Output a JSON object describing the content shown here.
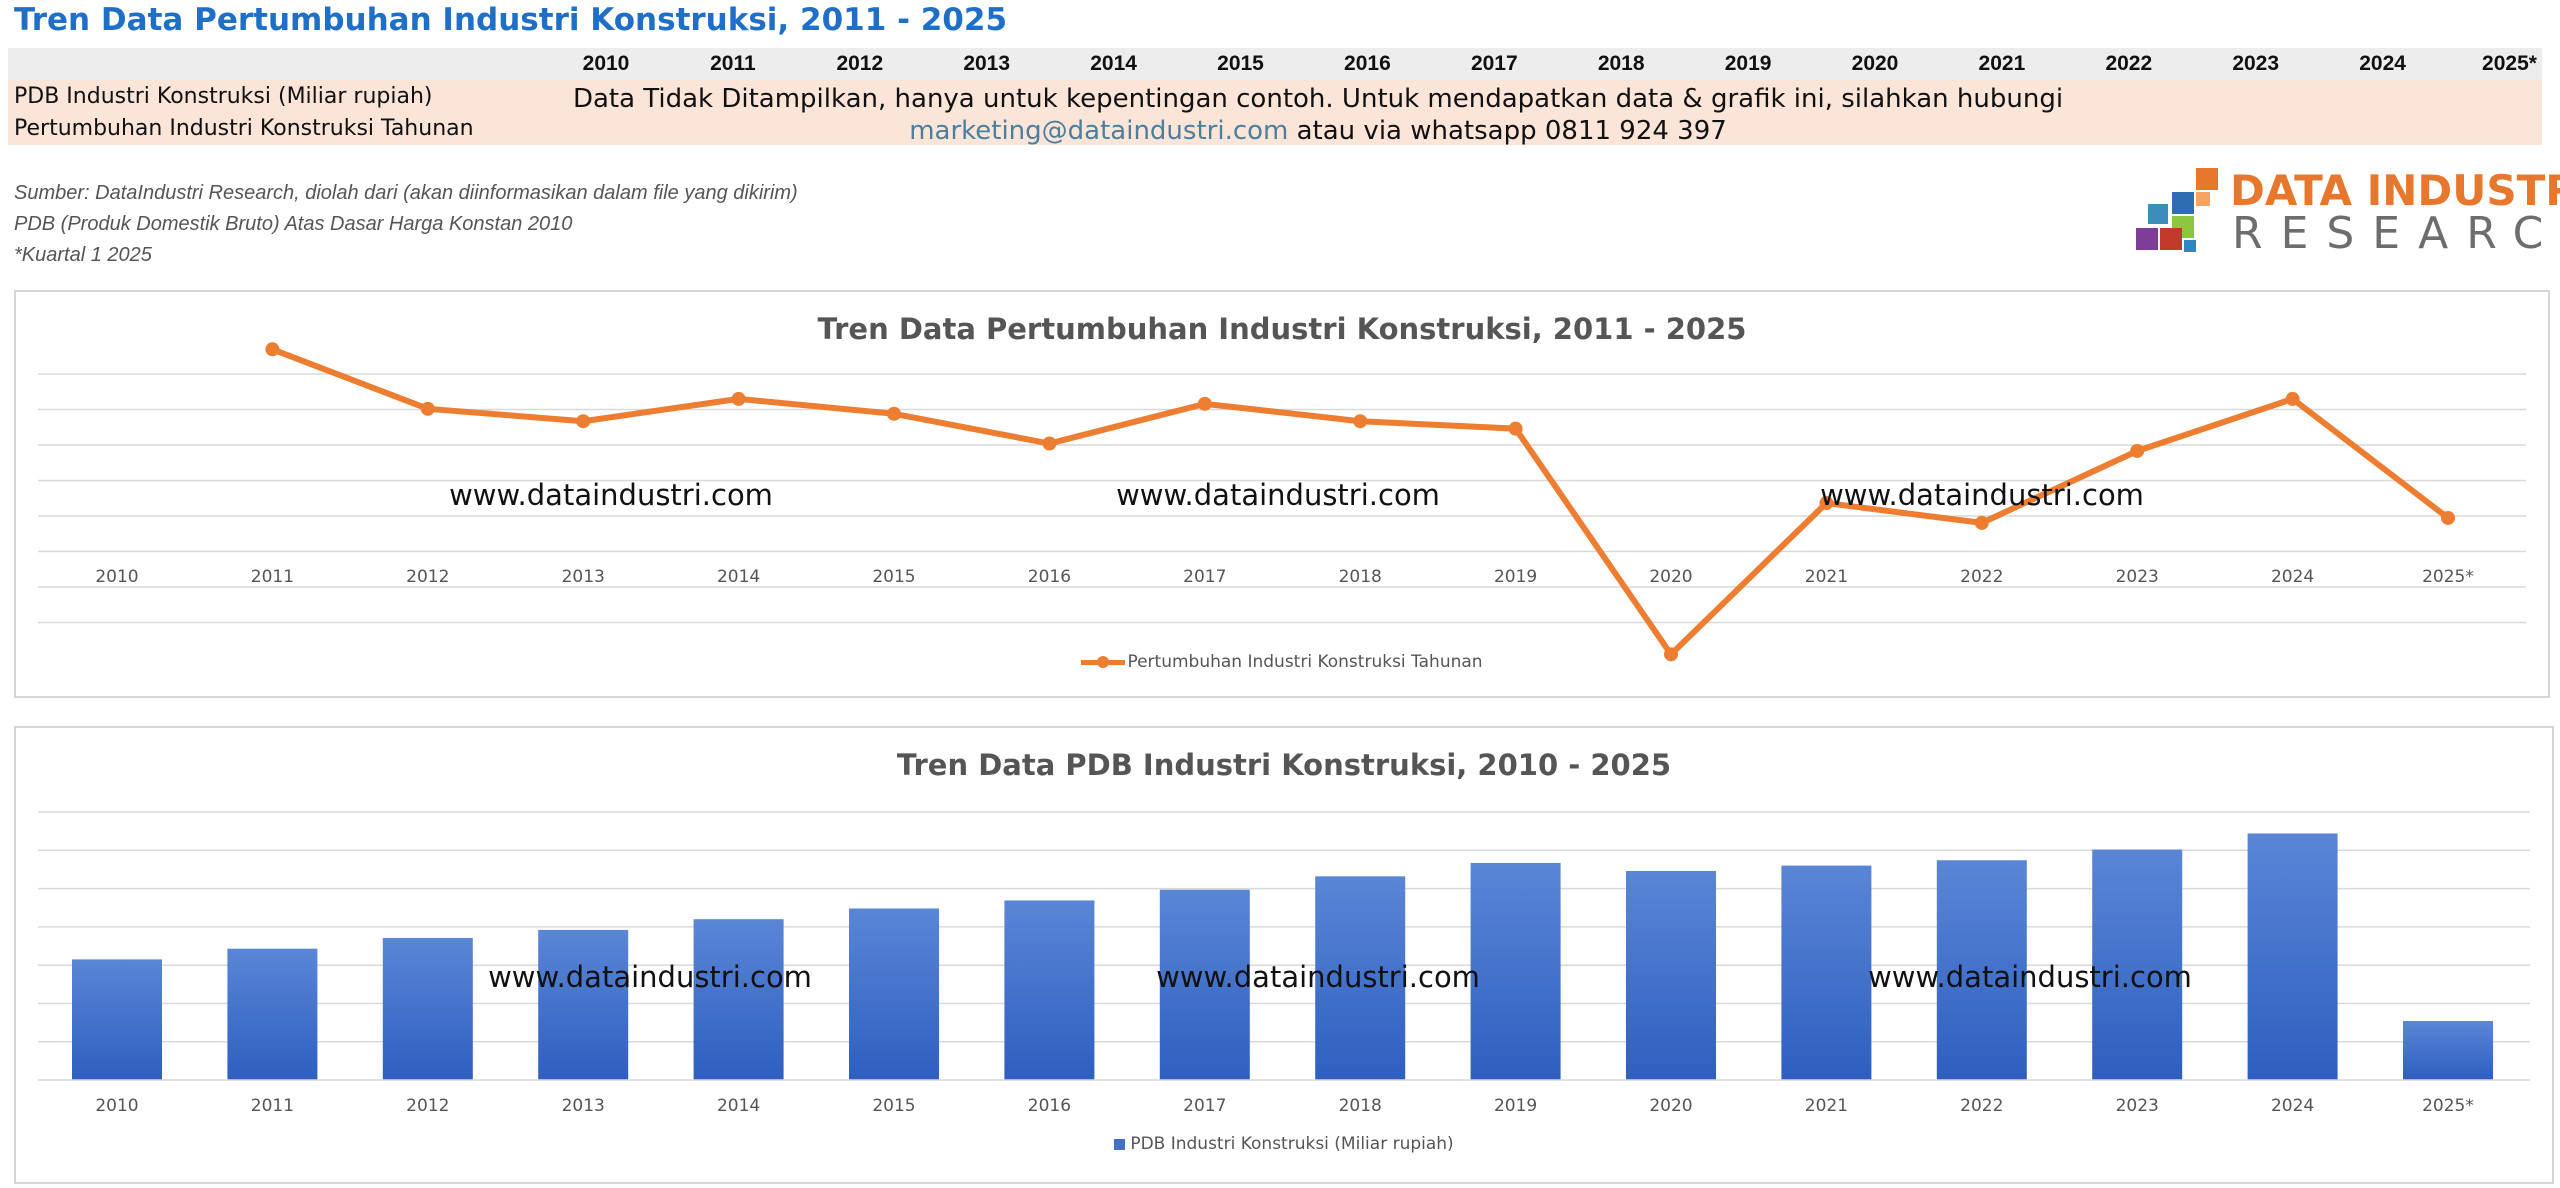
{
  "page": {
    "title": "Tren Data Pertumbuhan Industri Konstruksi, 2011 - 2025"
  },
  "table": {
    "years": [
      "2010",
      "2011",
      "2012",
      "2013",
      "2014",
      "2015",
      "2016",
      "2017",
      "2018",
      "2019",
      "2020",
      "2021",
      "2022",
      "2023",
      "2024",
      "2025*"
    ],
    "row_labels": [
      "PDB Industri Konstruksi (Miliar rupiah)",
      "Pertumbuhan Industri Konstruksi Tahunan"
    ],
    "notice_line1": "Data Tidak Ditampilkan, hanya untuk kepentingan contoh. Untuk mendapatkan data & grafik  ini, silahkan hubungi",
    "notice_email": "marketing@dataindustri.com",
    "notice_line2_rest": " atau via whatsapp 0811 924 397"
  },
  "notes": [
    "Sumber: DataIndustri Research, diolah dari (akan diinformasikan dalam file yang dikirim)",
    "PDB (Produk Domestik Bruto) Atas Dasar Harga Konstan 2010",
    "*Kuartal 1 2025"
  ],
  "logo": {
    "line1": "DATA INDUSTRI",
    "line2": "RESEARCH",
    "colors": [
      "#e8772e",
      "#6d6d6d",
      "#2e6db4",
      "#8cc63f",
      "#c0392b",
      "#7d3c98"
    ]
  },
  "watermark": "www.dataindustri.com",
  "chart_data": [
    {
      "type": "line",
      "title": "Tren Data Pertumbuhan Industri Konstruksi, 2011 - 2025",
      "categories": [
        "2010",
        "2011",
        "2012",
        "2013",
        "2014",
        "2015",
        "2016",
        "2017",
        "2018",
        "2019",
        "2020",
        "2021",
        "2022",
        "2023",
        "2024",
        "2025*"
      ],
      "series": [
        {
          "name": "Pertumbuhan Industri Konstruksi Tahunan",
          "color": "#ed7d31",
          "values": [
            null,
            9.0,
            6.6,
            6.1,
            7.0,
            6.4,
            5.2,
            6.8,
            6.1,
            5.8,
            -3.3,
            2.8,
            2.0,
            4.9,
            7.0,
            2.2
          ]
        }
      ],
      "y_axis_labels_shown": false,
      "grid": true,
      "legend_position": "bottom"
    },
    {
      "type": "bar",
      "title": "Tren Data PDB Industri Konstruksi, 2010 - 2025",
      "categories": [
        "2010",
        "2011",
        "2012",
        "2013",
        "2014",
        "2015",
        "2016",
        "2017",
        "2018",
        "2019",
        "2020",
        "2021",
        "2022",
        "2023",
        "2024",
        "2025*"
      ],
      "series": [
        {
          "name": "PDB Industri Konstruksi (Miliar rupiah)",
          "color": "#4472c4",
          "values": [
            45,
            49,
            53,
            56,
            60,
            64,
            67,
            71,
            76,
            81,
            78,
            80,
            82,
            86,
            92,
            22
          ]
        }
      ],
      "y_axis_labels_shown": false,
      "grid": true,
      "legend_position": "bottom"
    }
  ]
}
